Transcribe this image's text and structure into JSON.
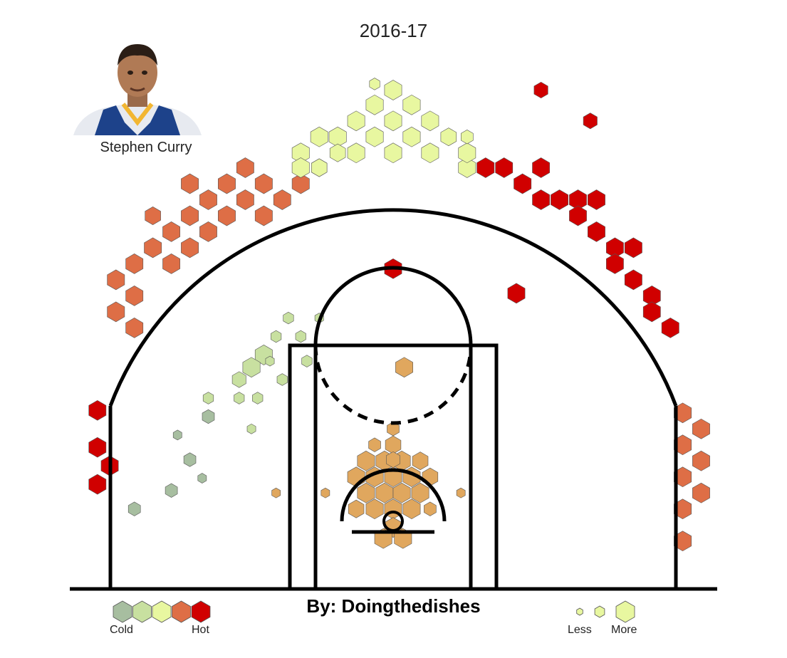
{
  "title": "2016-17",
  "player": {
    "name": "Stephen Curry",
    "photo_icon": "player-headshot-icon"
  },
  "credit": "By: Doingthedishes",
  "legend": {
    "color": {
      "low": "Cold",
      "high": "Hot",
      "scale": [
        "#a7bea0",
        "#c8e0a0",
        "#e8f7a0",
        "#de6e46",
        "#d00000"
      ]
    },
    "size": {
      "low": "Less",
      "high": "More"
    }
  },
  "colors": {
    "cold": "#a7bea0",
    "cool": "#c8e0a0",
    "neutral": "#e8f7a0",
    "paint": "#e0a75e",
    "warm": "#de6e46",
    "hot": "#d00000",
    "court_line": "#000000"
  },
  "chart_data": {
    "type": "hexbin",
    "description_axes": "court coordinates in feet, hoop at origin",
    "x_range": [
      -25,
      25
    ],
    "y_range": [
      -4,
      43
    ],
    "grid": false,
    "legend_placement": "bottom",
    "hex_bins": [
      {
        "x": 0,
        "y": 1,
        "size": 1.0,
        "heat": "paint"
      },
      {
        "x": -1.5,
        "y": 1,
        "size": 1.0,
        "heat": "paint"
      },
      {
        "x": 1.5,
        "y": 1,
        "size": 1.0,
        "heat": "paint"
      },
      {
        "x": -0.7,
        "y": 2.3,
        "size": 1.0,
        "heat": "paint"
      },
      {
        "x": 0.7,
        "y": 2.3,
        "size": 1.0,
        "heat": "paint"
      },
      {
        "x": -2.2,
        "y": 2.3,
        "size": 1.0,
        "heat": "paint"
      },
      {
        "x": 2.2,
        "y": 2.3,
        "size": 1.0,
        "heat": "paint"
      },
      {
        "x": 0,
        "y": 3.6,
        "size": 1.0,
        "heat": "paint"
      },
      {
        "x": -1.5,
        "y": 3.6,
        "size": 1.0,
        "heat": "paint"
      },
      {
        "x": 1.5,
        "y": 3.6,
        "size": 1.0,
        "heat": "paint"
      },
      {
        "x": -3.0,
        "y": 3.6,
        "size": 1.0,
        "heat": "paint"
      },
      {
        "x": 3.0,
        "y": 3.6,
        "size": 0.9,
        "heat": "paint"
      },
      {
        "x": -0.7,
        "y": 4.9,
        "size": 1.0,
        "heat": "paint"
      },
      {
        "x": 0.7,
        "y": 4.9,
        "size": 1.0,
        "heat": "paint"
      },
      {
        "x": -2.2,
        "y": 4.9,
        "size": 1.0,
        "heat": "paint"
      },
      {
        "x": 2.2,
        "y": 4.9,
        "size": 0.9,
        "heat": "paint"
      },
      {
        "x": 0,
        "y": 6.2,
        "size": 0.9,
        "heat": "paint"
      },
      {
        "x": -1.5,
        "y": 6.2,
        "size": 0.7,
        "heat": "paint"
      },
      {
        "x": 0,
        "y": 7.5,
        "size": 0.7,
        "heat": "paint"
      },
      {
        "x": 0,
        "y": -0.5,
        "size": 1.0,
        "heat": "paint"
      },
      {
        "x": -0.8,
        "y": -1.4,
        "size": 1.0,
        "heat": "paint"
      },
      {
        "x": 0.8,
        "y": -1.4,
        "size": 1.0,
        "heat": "paint"
      },
      {
        "x": -3.0,
        "y": 1,
        "size": 0.9,
        "heat": "paint"
      },
      {
        "x": 3.0,
        "y": 1,
        "size": 0.7,
        "heat": "paint"
      },
      {
        "x": 0.9,
        "y": 12.5,
        "size": 1.0,
        "heat": "paint"
      },
      {
        "x": 0.0,
        "y": 5.0,
        "size": 0.8,
        "heat": "paint"
      },
      {
        "x": -5.5,
        "y": 2.3,
        "size": 0.5,
        "heat": "paint"
      },
      {
        "x": 5.5,
        "y": 2.3,
        "size": 0.5,
        "heat": "paint"
      },
      {
        "x": -9.5,
        "y": 2.3,
        "size": 0.5,
        "heat": "paint"
      },
      {
        "x": -12,
        "y": 28.7,
        "size": 1.0,
        "heat": "warm"
      },
      {
        "x": -13.5,
        "y": 27.4,
        "size": 1.0,
        "heat": "warm"
      },
      {
        "x": -10.5,
        "y": 27.4,
        "size": 1.0,
        "heat": "warm"
      },
      {
        "x": -15,
        "y": 26.1,
        "size": 1.0,
        "heat": "warm"
      },
      {
        "x": -12,
        "y": 26.1,
        "size": 1.0,
        "heat": "warm"
      },
      {
        "x": -9,
        "y": 26.1,
        "size": 1.0,
        "heat": "warm"
      },
      {
        "x": -16.5,
        "y": 24.8,
        "size": 1.0,
        "heat": "warm"
      },
      {
        "x": -13.5,
        "y": 24.8,
        "size": 1.0,
        "heat": "warm"
      },
      {
        "x": -10.5,
        "y": 24.8,
        "size": 1.0,
        "heat": "warm"
      },
      {
        "x": -18,
        "y": 23.5,
        "size": 1.0,
        "heat": "warm"
      },
      {
        "x": -15,
        "y": 23.5,
        "size": 1.0,
        "heat": "warm"
      },
      {
        "x": -19.5,
        "y": 22.2,
        "size": 1.0,
        "heat": "warm"
      },
      {
        "x": -16.5,
        "y": 22.2,
        "size": 1.0,
        "heat": "warm"
      },
      {
        "x": -21,
        "y": 20.9,
        "size": 1.0,
        "heat": "warm"
      },
      {
        "x": -18,
        "y": 20.9,
        "size": 1.0,
        "heat": "warm"
      },
      {
        "x": -22.5,
        "y": 19.6,
        "size": 1.0,
        "heat": "warm"
      },
      {
        "x": -21,
        "y": 18.3,
        "size": 1.0,
        "heat": "warm"
      },
      {
        "x": -22.5,
        "y": 17.0,
        "size": 1.0,
        "heat": "warm"
      },
      {
        "x": -21,
        "y": 15.7,
        "size": 1.0,
        "heat": "warm"
      },
      {
        "x": -16.5,
        "y": 27.4,
        "size": 1.0,
        "heat": "warm"
      },
      {
        "x": -7.5,
        "y": 27.4,
        "size": 1.0,
        "heat": "warm"
      },
      {
        "x": -6,
        "y": 28.7,
        "size": 0.9,
        "heat": "warm"
      },
      {
        "x": -19.5,
        "y": 24.8,
        "size": 0.9,
        "heat": "warm"
      },
      {
        "x": 23.5,
        "y": 3.6,
        "size": 1.0,
        "heat": "warm"
      },
      {
        "x": 25,
        "y": 4.9,
        "size": 1.0,
        "heat": "warm"
      },
      {
        "x": 23.5,
        "y": 6.2,
        "size": 1.0,
        "heat": "warm"
      },
      {
        "x": 25,
        "y": 7.5,
        "size": 1.0,
        "heat": "warm"
      },
      {
        "x": 23.5,
        "y": 8.8,
        "size": 1.0,
        "heat": "warm"
      },
      {
        "x": 23.5,
        "y": 1.0,
        "size": 1.0,
        "heat": "warm"
      },
      {
        "x": 25,
        "y": 2.3,
        "size": 1.0,
        "heat": "warm"
      },
      {
        "x": 23.5,
        "y": -1.6,
        "size": 1.0,
        "heat": "warm"
      },
      {
        "x": 9,
        "y": 28.7,
        "size": 1.0,
        "heat": "hot"
      },
      {
        "x": 10.5,
        "y": 27.4,
        "size": 1.0,
        "heat": "hot"
      },
      {
        "x": 12,
        "y": 26.1,
        "size": 1.0,
        "heat": "hot"
      },
      {
        "x": 13.5,
        "y": 26.1,
        "size": 1.0,
        "heat": "hot"
      },
      {
        "x": 15,
        "y": 26.1,
        "size": 1.0,
        "heat": "hot"
      },
      {
        "x": 16.5,
        "y": 26.1,
        "size": 1.0,
        "heat": "hot"
      },
      {
        "x": 15,
        "y": 24.8,
        "size": 1.0,
        "heat": "hot"
      },
      {
        "x": 16.5,
        "y": 23.5,
        "size": 1.0,
        "heat": "hot"
      },
      {
        "x": 18,
        "y": 22.2,
        "size": 1.0,
        "heat": "hot"
      },
      {
        "x": 19.5,
        "y": 22.2,
        "size": 1.0,
        "heat": "hot"
      },
      {
        "x": 18,
        "y": 20.9,
        "size": 1.0,
        "heat": "hot"
      },
      {
        "x": 19.5,
        "y": 19.6,
        "size": 1.0,
        "heat": "hot"
      },
      {
        "x": 21,
        "y": 18.3,
        "size": 1.0,
        "heat": "hot"
      },
      {
        "x": 21,
        "y": 17.0,
        "size": 1.0,
        "heat": "hot"
      },
      {
        "x": 22.5,
        "y": 15.7,
        "size": 1.0,
        "heat": "hot"
      },
      {
        "x": 12,
        "y": 28.7,
        "size": 1.0,
        "heat": "hot"
      },
      {
        "x": 7.5,
        "y": 28.7,
        "size": 1.0,
        "heat": "hot"
      },
      {
        "x": -24,
        "y": 9.0,
        "size": 1.0,
        "heat": "hot"
      },
      {
        "x": -24,
        "y": 6.0,
        "size": 1.0,
        "heat": "hot"
      },
      {
        "x": -23,
        "y": 4.5,
        "size": 1.0,
        "heat": "hot"
      },
      {
        "x": -24,
        "y": 3.0,
        "size": 1.0,
        "heat": "hot"
      },
      {
        "x": 10,
        "y": 18.5,
        "size": 1.0,
        "heat": "hot"
      },
      {
        "x": 0,
        "y": 20.5,
        "size": 1.0,
        "heat": "hot"
      },
      {
        "x": 16,
        "y": 32.5,
        "size": 0.8,
        "heat": "hot"
      },
      {
        "x": 12,
        "y": 35.0,
        "size": 0.8,
        "heat": "hot"
      },
      {
        "x": 0,
        "y": 32.5,
        "size": 1.0,
        "heat": "neutral"
      },
      {
        "x": -1.5,
        "y": 33.8,
        "size": 1.0,
        "heat": "neutral"
      },
      {
        "x": 1.5,
        "y": 33.8,
        "size": 1.0,
        "heat": "neutral"
      },
      {
        "x": -3,
        "y": 32.5,
        "size": 1.0,
        "heat": "neutral"
      },
      {
        "x": 3,
        "y": 32.5,
        "size": 1.0,
        "heat": "neutral"
      },
      {
        "x": -1.5,
        "y": 31.2,
        "size": 1.0,
        "heat": "neutral"
      },
      {
        "x": 1.5,
        "y": 31.2,
        "size": 1.0,
        "heat": "neutral"
      },
      {
        "x": 0,
        "y": 29.9,
        "size": 1.0,
        "heat": "neutral"
      },
      {
        "x": -3,
        "y": 29.9,
        "size": 1.0,
        "heat": "neutral"
      },
      {
        "x": 3,
        "y": 29.9,
        "size": 1.0,
        "heat": "neutral"
      },
      {
        "x": -4.5,
        "y": 31.2,
        "size": 1.0,
        "heat": "neutral"
      },
      {
        "x": 4.5,
        "y": 31.2,
        "size": 0.9,
        "heat": "neutral"
      },
      {
        "x": -7.5,
        "y": 29.9,
        "size": 1.0,
        "heat": "neutral"
      },
      {
        "x": -6,
        "y": 31.2,
        "size": 1.0,
        "heat": "neutral"
      },
      {
        "x": -4.5,
        "y": 29.9,
        "size": 0.9,
        "heat": "neutral"
      },
      {
        "x": -6,
        "y": 28.7,
        "size": 0.9,
        "heat": "neutral"
      },
      {
        "x": -7.5,
        "y": 28.7,
        "size": 1.0,
        "heat": "neutral"
      },
      {
        "x": 6,
        "y": 28.7,
        "size": 1.0,
        "heat": "neutral"
      },
      {
        "x": 6,
        "y": 29.9,
        "size": 1.0,
        "heat": "neutral"
      },
      {
        "x": 6,
        "y": 31.2,
        "size": 0.7,
        "heat": "neutral"
      },
      {
        "x": 0,
        "y": 35.0,
        "size": 1.0,
        "heat": "neutral"
      },
      {
        "x": -1.5,
        "y": 35.5,
        "size": 0.6,
        "heat": "neutral"
      },
      {
        "x": -10.5,
        "y": 13.5,
        "size": 1.0,
        "heat": "cool"
      },
      {
        "x": -11.5,
        "y": 12.5,
        "size": 1.0,
        "heat": "cool"
      },
      {
        "x": -12.5,
        "y": 11.5,
        "size": 0.8,
        "heat": "cool"
      },
      {
        "x": -8.5,
        "y": 16.5,
        "size": 0.6,
        "heat": "cool"
      },
      {
        "x": -7.5,
        "y": 15.0,
        "size": 0.6,
        "heat": "cool"
      },
      {
        "x": -9.5,
        "y": 15.0,
        "size": 0.6,
        "heat": "cool"
      },
      {
        "x": -12.5,
        "y": 10.0,
        "size": 0.6,
        "heat": "cool"
      },
      {
        "x": -15,
        "y": 10.0,
        "size": 0.6,
        "heat": "cool"
      },
      {
        "x": -11,
        "y": 10.0,
        "size": 0.6,
        "heat": "cool"
      },
      {
        "x": -10,
        "y": 13.0,
        "size": 0.5,
        "heat": "cool"
      },
      {
        "x": -9,
        "y": 11.5,
        "size": 0.6,
        "heat": "cool"
      },
      {
        "x": -7,
        "y": 13.0,
        "size": 0.6,
        "heat": "cool"
      },
      {
        "x": -6,
        "y": 16.5,
        "size": 0.5,
        "heat": "cool"
      },
      {
        "x": -11.5,
        "y": 7.5,
        "size": 0.5,
        "heat": "cool"
      },
      {
        "x": -15,
        "y": 8.5,
        "size": 0.7,
        "heat": "cold"
      },
      {
        "x": -16.5,
        "y": 5.0,
        "size": 0.7,
        "heat": "cold"
      },
      {
        "x": -18,
        "y": 2.5,
        "size": 0.7,
        "heat": "cold"
      },
      {
        "x": -21,
        "y": 1.0,
        "size": 0.7,
        "heat": "cold"
      },
      {
        "x": -17.5,
        "y": 7.0,
        "size": 0.5,
        "heat": "cold"
      },
      {
        "x": -15.5,
        "y": 3.5,
        "size": 0.5,
        "heat": "cold"
      }
    ]
  }
}
